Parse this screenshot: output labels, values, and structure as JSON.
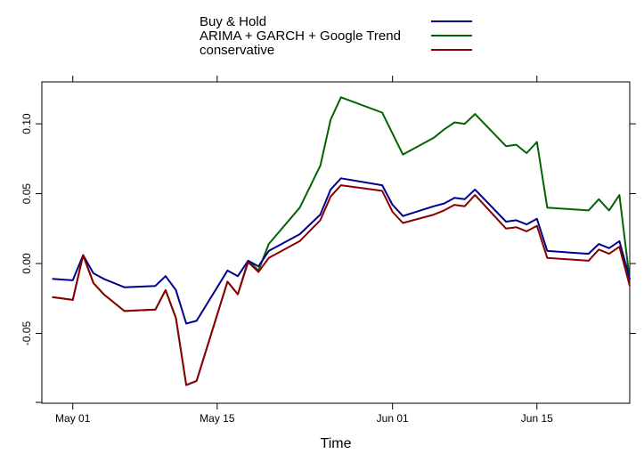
{
  "chart_data": {
    "type": "line",
    "xlabel": "Time",
    "ylabel": "",
    "legend_position": "top",
    "grid": false,
    "xlim": [
      "2015-04-28",
      "2015-06-24"
    ],
    "ylim": [
      -0.1,
      0.13
    ],
    "x_ticks": [
      {
        "date": "2015-05-01",
        "label": "May 01"
      },
      {
        "date": "2015-05-15",
        "label": "May 15"
      },
      {
        "date": "2015-06-01",
        "label": "Jun 01"
      },
      {
        "date": "2015-06-15",
        "label": "Jun 15"
      }
    ],
    "y_ticks": [
      {
        "value": -0.05,
        "label": "-0.05"
      },
      {
        "value": 0.0,
        "label": "0.00"
      },
      {
        "value": 0.05,
        "label": "0.05"
      },
      {
        "value": 0.1,
        "label": "0.10"
      }
    ],
    "x": [
      "2015-04-29",
      "2015-05-01",
      "2015-05-02",
      "2015-05-03",
      "2015-05-04",
      "2015-05-06",
      "2015-05-09",
      "2015-05-10",
      "2015-05-11",
      "2015-05-12",
      "2015-05-13",
      "2015-05-16",
      "2015-05-17",
      "2015-05-18",
      "2015-05-19",
      "2015-05-20",
      "2015-05-23",
      "2015-05-25",
      "2015-05-26",
      "2015-05-27",
      "2015-05-31",
      "2015-06-01",
      "2015-06-02",
      "2015-06-05",
      "2015-06-06",
      "2015-06-07",
      "2015-06-08",
      "2015-06-09",
      "2015-06-12",
      "2015-06-13",
      "2015-06-14",
      "2015-06-15",
      "2015-06-16",
      "2015-06-20",
      "2015-06-21",
      "2015-06-22",
      "2015-06-23",
      "2015-06-24"
    ],
    "series": [
      {
        "name": "Buy & Hold",
        "color": "#00008B",
        "values": [
          -0.011,
          -0.012,
          0.006,
          -0.007,
          -0.011,
          -0.017,
          -0.016,
          -0.009,
          -0.019,
          -0.043,
          -0.041,
          -0.005,
          -0.009,
          0.002,
          -0.002,
          0.009,
          0.021,
          0.035,
          0.053,
          0.061,
          0.056,
          0.042,
          0.034,
          0.041,
          0.043,
          0.047,
          0.046,
          0.053,
          0.03,
          0.031,
          0.028,
          0.032,
          0.009,
          0.007,
          0.014,
          0.011,
          0.016,
          -0.011
        ]
      },
      {
        "name": "ARIMA + GARCH + Google Trend",
        "color": "#006400",
        "values": [
          -0.024,
          -0.026,
          0.006,
          -0.014,
          -0.022,
          -0.034,
          -0.033,
          -0.019,
          -0.039,
          -0.087,
          -0.084,
          -0.013,
          -0.022,
          0.002,
          -0.005,
          0.014,
          0.04,
          0.07,
          0.103,
          0.119,
          0.108,
          0.093,
          0.078,
          0.09,
          0.096,
          0.101,
          0.1,
          0.107,
          0.084,
          0.085,
          0.079,
          0.087,
          0.04,
          0.038,
          0.046,
          0.038,
          0.049,
          -0.012
        ]
      },
      {
        "name": "conservative",
        "color": "#8B0000",
        "values": [
          -0.024,
          -0.026,
          0.006,
          -0.014,
          -0.022,
          -0.034,
          -0.033,
          -0.019,
          -0.039,
          -0.087,
          -0.084,
          -0.013,
          -0.022,
          0.001,
          -0.006,
          0.004,
          0.016,
          0.031,
          0.048,
          0.056,
          0.052,
          0.037,
          0.029,
          0.035,
          0.038,
          0.042,
          0.041,
          0.049,
          0.025,
          0.026,
          0.023,
          0.027,
          0.004,
          0.002,
          0.01,
          0.007,
          0.012,
          -0.016
        ]
      }
    ]
  }
}
